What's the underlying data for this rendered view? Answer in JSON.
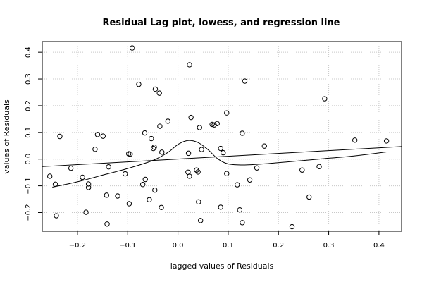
{
  "chart_data": {
    "type": "scatter",
    "title": "Residual Lag plot, lowess, and regression line",
    "xlabel": "lagged values of Residuals",
    "ylabel": "values of Residuals",
    "xlim": [
      -0.27,
      0.445
    ],
    "ylim": [
      -0.27,
      0.44
    ],
    "x_ticks": [
      -0.2,
      -0.1,
      0.0,
      0.1,
      0.2,
      0.3,
      0.4
    ],
    "x_tick_labels": [
      "−0.2",
      "−0.1",
      "0.0",
      "0.1",
      "0.2",
      "0.3",
      "0.4"
    ],
    "y_ticks": [
      -0.2,
      -0.1,
      0.0,
      0.1,
      0.2,
      0.3,
      0.4
    ],
    "y_tick_labels": [
      "−0.2",
      "−0.1",
      "0.0",
      "0.1",
      "0.2",
      "0.3",
      "0.4"
    ],
    "grid": true,
    "points": [
      [
        -0.091,
        0.416
      ],
      [
        -0.078,
        0.28
      ],
      [
        -0.045,
        0.262
      ],
      [
        -0.037,
        0.247
      ],
      [
        0.023,
        0.353
      ],
      [
        0.133,
        0.292
      ],
      [
        0.292,
        0.226
      ],
      [
        0.026,
        0.156
      ],
      [
        0.097,
        0.173
      ],
      [
        -0.02,
        0.142
      ],
      [
        -0.235,
        0.085
      ],
      [
        -0.16,
        0.092
      ],
      [
        -0.149,
        0.086
      ],
      [
        -0.066,
        0.098
      ],
      [
        -0.053,
        0.077
      ],
      [
        -0.036,
        0.123
      ],
      [
        0.043,
        0.118
      ],
      [
        0.068,
        0.13
      ],
      [
        0.072,
        0.128
      ],
      [
        0.078,
        0.133
      ],
      [
        0.128,
        0.097
      ],
      [
        -0.165,
        0.037
      ],
      [
        -0.098,
        0.02
      ],
      [
        -0.095,
        0.019
      ],
      [
        -0.049,
        0.04
      ],
      [
        -0.047,
        0.045
      ],
      [
        -0.032,
        0.026
      ],
      [
        0.021,
        0.022
      ],
      [
        0.047,
        0.036
      ],
      [
        0.085,
        0.04
      ],
      [
        0.09,
        0.024
      ],
      [
        0.172,
        0.049
      ],
      [
        0.352,
        0.071
      ],
      [
        0.415,
        0.068
      ],
      [
        -0.255,
        -0.064
      ],
      [
        -0.213,
        -0.034
      ],
      [
        -0.19,
        -0.068
      ],
      [
        -0.138,
        -0.029
      ],
      [
        -0.105,
        -0.055
      ],
      [
        -0.07,
        -0.095
      ],
      [
        -0.065,
        -0.076
      ],
      [
        0.02,
        -0.049
      ],
      [
        0.023,
        -0.064
      ],
      [
        0.037,
        -0.041
      ],
      [
        0.04,
        -0.048
      ],
      [
        0.097,
        -0.054
      ],
      [
        0.118,
        -0.096
      ],
      [
        0.143,
        -0.078
      ],
      [
        0.157,
        -0.033
      ],
      [
        0.247,
        -0.041
      ],
      [
        0.281,
        -0.028
      ],
      [
        -0.244,
        -0.094
      ],
      [
        -0.178,
        -0.093
      ],
      [
        -0.178,
        -0.106
      ],
      [
        -0.142,
        -0.135
      ],
      [
        -0.12,
        -0.138
      ],
      [
        -0.046,
        -0.116
      ],
      [
        -0.057,
        -0.152
      ],
      [
        -0.097,
        -0.167
      ],
      [
        -0.242,
        -0.212
      ],
      [
        -0.183,
        -0.199
      ],
      [
        -0.141,
        -0.243
      ],
      [
        -0.033,
        -0.181
      ],
      [
        0.041,
        -0.16
      ],
      [
        0.085,
        -0.18
      ],
      [
        0.261,
        -0.142
      ],
      [
        0.123,
        -0.19
      ],
      [
        0.045,
        -0.23
      ],
      [
        0.128,
        -0.238
      ],
      [
        0.227,
        -0.253
      ]
    ],
    "regression_line": {
      "x": [
        -0.27,
        0.445
      ],
      "y": [
        -0.028,
        0.047
      ]
    },
    "lowess_line": {
      "x": [
        -0.25,
        -0.2,
        -0.15,
        -0.1,
        -0.05,
        -0.02,
        0.0,
        0.02,
        0.04,
        0.06,
        0.08,
        0.1,
        0.13,
        0.17,
        0.22,
        0.28,
        0.35,
        0.415
      ],
      "y": [
        -0.105,
        -0.085,
        -0.06,
        -0.035,
        -0.005,
        0.025,
        0.055,
        0.07,
        0.062,
        0.035,
        0.0,
        -0.018,
        -0.022,
        -0.018,
        -0.01,
        0.0,
        0.012,
        0.027
      ]
    }
  }
}
